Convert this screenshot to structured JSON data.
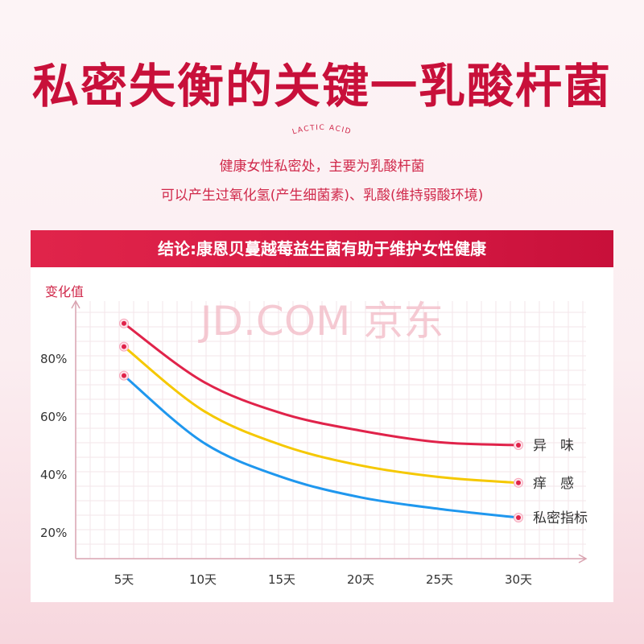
{
  "header": {
    "title": "私密失衡的关键一乳酸杆菌",
    "subtitle_en": "LACTIC ACID",
    "line1": "健康女性私密处，主要为乳酸杆菌",
    "line2": "可以产生过氧化氢(产生细菌素)、乳酸(维持弱酸环境)"
  },
  "banner": {
    "text": "结论:康恩贝蔓越莓益生菌有助于维护女性健康"
  },
  "watermark": "JD.COM 京东",
  "chart_data": {
    "type": "line",
    "ylabel": "变化值",
    "y_ticks": [
      "20%",
      "40%",
      "60%",
      "80%"
    ],
    "ylim": [
      10,
      100
    ],
    "categories": [
      "5天",
      "10天",
      "15天",
      "20天",
      "25天",
      "30天"
    ],
    "x": [
      5,
      10,
      15,
      20,
      25,
      30
    ],
    "grid": true,
    "series": [
      {
        "name": "异　味",
        "color": "#e0234a",
        "values": [
          92,
          72,
          61,
          55,
          51,
          50
        ]
      },
      {
        "name": "痒　感",
        "color": "#f5c800",
        "values": [
          84,
          62,
          50,
          43,
          39,
          37
        ]
      },
      {
        "name": "私密指标",
        "color": "#1f97ee",
        "values": [
          74,
          51,
          39,
          32,
          28,
          25
        ]
      }
    ]
  }
}
